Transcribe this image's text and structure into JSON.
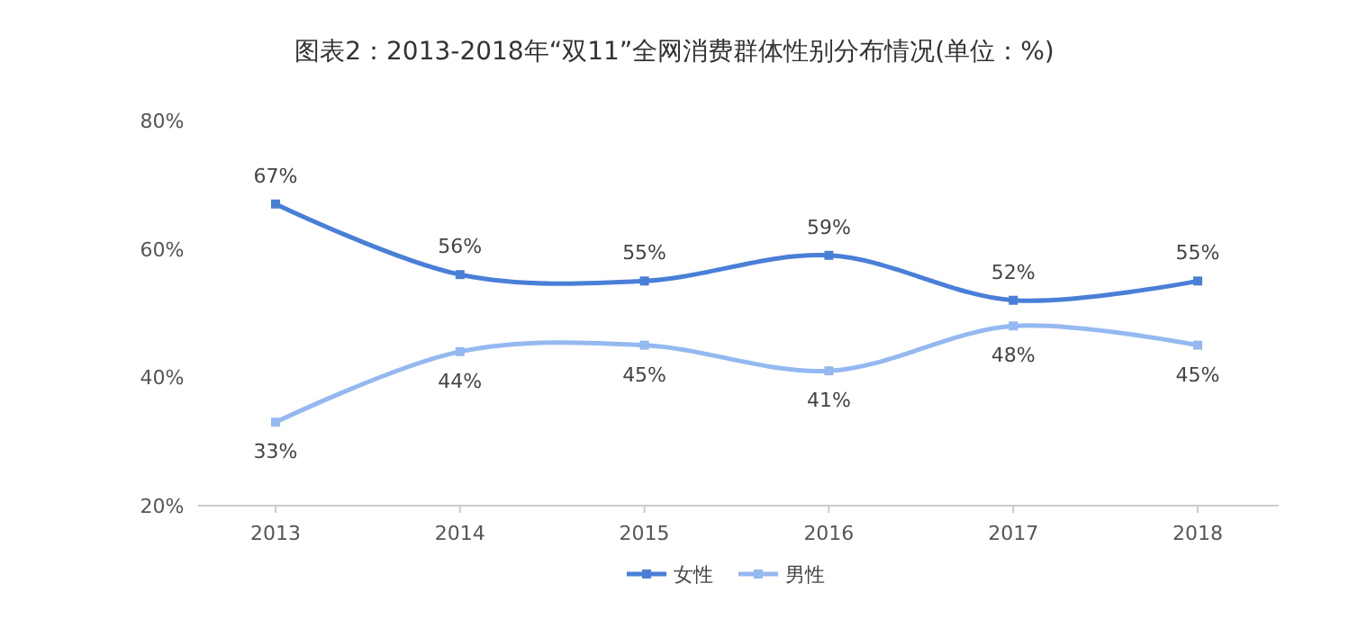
{
  "chart_data": {
    "type": "line",
    "title": "图表2：2013-2018年“双11”全网消费群体性别分布情况(单位：%)",
    "categories": [
      "2013",
      "2014",
      "2015",
      "2016",
      "2017",
      "2018"
    ],
    "series": [
      {
        "name": "女性",
        "color": "#4a7fd8",
        "values": [
          67,
          56,
          55,
          59,
          52,
          55
        ],
        "value_labels": [
          "67%",
          "56%",
          "55%",
          "59%",
          "52%",
          "55%"
        ]
      },
      {
        "name": "男性",
        "color": "#94b8f0",
        "values": [
          33,
          44,
          45,
          41,
          48,
          45
        ],
        "value_labels": [
          "33%",
          "44%",
          "45%",
          "41%",
          "48%",
          "45%"
        ]
      }
    ],
    "ylim": [
      20,
      80
    ],
    "yticks": [
      {
        "value": 20,
        "label": "20%"
      },
      {
        "value": 40,
        "label": "40%"
      },
      {
        "value": 60,
        "label": "60%"
      },
      {
        "value": 80,
        "label": "80%"
      }
    ],
    "grid": false,
    "legend": "bottom",
    "marker": "square",
    "line_style": "solid"
  }
}
